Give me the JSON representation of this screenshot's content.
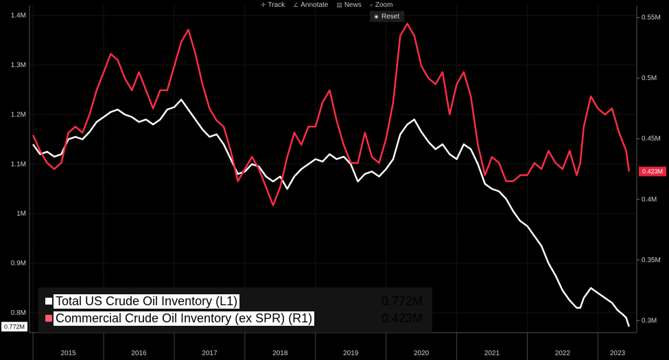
{
  "toolbar": {
    "items": [
      {
        "label": "Track",
        "icon": "crosshair-icon"
      },
      {
        "label": "Annotate",
        "icon": "pencil-icon"
      },
      {
        "label": "News",
        "icon": "news-icon"
      },
      {
        "label": "Zoom",
        "icon": "magnifier-icon"
      }
    ],
    "reset_label": "Reset"
  },
  "legend": {
    "rows": [
      {
        "label": "Total US Crude Oil Inventory (L1)",
        "value": "0.772M"
      },
      {
        "label": "Commercial Crude Oil Inventory (ex SPR) (R1)",
        "value": "0.423M"
      }
    ]
  },
  "badges": {
    "left": "0.772M",
    "right": "0.423M"
  },
  "colors": {
    "white_series": "#ffffff",
    "red_series": "#ff2d46",
    "grid": "#3a3a3a",
    "axis_text": "#d0d0d0",
    "right_badge": "#e8263f"
  },
  "chart_data": {
    "type": "line",
    "x_ticks": [
      "2015",
      "2016",
      "2017",
      "2018",
      "2019",
      "2020",
      "2021",
      "2022",
      "2023"
    ],
    "y_left": {
      "ticks": [
        "1.4M",
        "1.3M",
        "1.2M",
        "1.1M",
        "1M",
        "0.9M",
        "0.8M"
      ],
      "min": 0.76,
      "max": 1.42
    },
    "y_right": {
      "ticks": [
        "0.55M",
        "0.5M",
        "0.45M",
        "0.4M",
        "0.35M",
        "0.3M"
      ],
      "min": 0.29,
      "max": 0.56
    },
    "x_range": [
      2014.95,
      2023.55
    ],
    "grid": true,
    "series": [
      {
        "name": "Total US Crude Oil Inventory (L1)",
        "axis": "left",
        "color": "#ffffff",
        "points": [
          [
            2015.0,
            1.14
          ],
          [
            2015.1,
            1.12
          ],
          [
            2015.2,
            1.125
          ],
          [
            2015.3,
            1.115
          ],
          [
            2015.4,
            1.12
          ],
          [
            2015.5,
            1.15
          ],
          [
            2015.6,
            1.155
          ],
          [
            2015.7,
            1.15
          ],
          [
            2015.8,
            1.165
          ],
          [
            2015.9,
            1.185
          ],
          [
            2016.0,
            1.195
          ],
          [
            2016.1,
            1.205
          ],
          [
            2016.2,
            1.21
          ],
          [
            2016.3,
            1.2
          ],
          [
            2016.4,
            1.195
          ],
          [
            2016.5,
            1.185
          ],
          [
            2016.6,
            1.19
          ],
          [
            2016.7,
            1.18
          ],
          [
            2016.8,
            1.19
          ],
          [
            2016.9,
            1.21
          ],
          [
            2017.0,
            1.215
          ],
          [
            2017.1,
            1.23
          ],
          [
            2017.2,
            1.21
          ],
          [
            2017.3,
            1.19
          ],
          [
            2017.4,
            1.17
          ],
          [
            2017.5,
            1.155
          ],
          [
            2017.6,
            1.16
          ],
          [
            2017.7,
            1.14
          ],
          [
            2017.8,
            1.11
          ],
          [
            2017.9,
            1.08
          ],
          [
            2018.0,
            1.085
          ],
          [
            2018.1,
            1.1
          ],
          [
            2018.2,
            1.095
          ],
          [
            2018.3,
            1.075
          ],
          [
            2018.4,
            1.065
          ],
          [
            2018.5,
            1.075
          ],
          [
            2018.6,
            1.05
          ],
          [
            2018.7,
            1.075
          ],
          [
            2018.8,
            1.09
          ],
          [
            2018.9,
            1.1
          ],
          [
            2019.0,
            1.11
          ],
          [
            2019.1,
            1.105
          ],
          [
            2019.2,
            1.12
          ],
          [
            2019.3,
            1.11
          ],
          [
            2019.4,
            1.115
          ],
          [
            2019.5,
            1.1
          ],
          [
            2019.6,
            1.065
          ],
          [
            2019.7,
            1.08
          ],
          [
            2019.8,
            1.085
          ],
          [
            2019.9,
            1.075
          ],
          [
            2020.0,
            1.09
          ],
          [
            2020.1,
            1.11
          ],
          [
            2020.2,
            1.16
          ],
          [
            2020.3,
            1.18
          ],
          [
            2020.4,
            1.19
          ],
          [
            2020.5,
            1.165
          ],
          [
            2020.6,
            1.145
          ],
          [
            2020.7,
            1.13
          ],
          [
            2020.8,
            1.14
          ],
          [
            2020.9,
            1.12
          ],
          [
            2021.0,
            1.11
          ],
          [
            2021.1,
            1.14
          ],
          [
            2021.2,
            1.13
          ],
          [
            2021.3,
            1.1
          ],
          [
            2021.4,
            1.06
          ],
          [
            2021.5,
            1.05
          ],
          [
            2021.6,
            1.045
          ],
          [
            2021.7,
            1.03
          ],
          [
            2021.8,
            1.005
          ],
          [
            2021.9,
            0.985
          ],
          [
            2022.0,
            0.975
          ],
          [
            2022.1,
            0.955
          ],
          [
            2022.2,
            0.935
          ],
          [
            2022.3,
            0.9
          ],
          [
            2022.4,
            0.875
          ],
          [
            2022.5,
            0.845
          ],
          [
            2022.6,
            0.825
          ],
          [
            2022.7,
            0.81
          ],
          [
            2022.75,
            0.81
          ],
          [
            2022.8,
            0.83
          ],
          [
            2022.9,
            0.85
          ],
          [
            2023.0,
            0.84
          ],
          [
            2023.1,
            0.83
          ],
          [
            2023.2,
            0.82
          ],
          [
            2023.28,
            0.805
          ],
          [
            2023.35,
            0.797
          ],
          [
            2023.4,
            0.79
          ],
          [
            2023.44,
            0.772
          ]
        ]
      },
      {
        "name": "Commercial Crude Oil Inventory (ex SPR) (R1)",
        "axis": "right",
        "color": "#ff2d46",
        "points": [
          [
            2015.0,
            0.453
          ],
          [
            2015.1,
            0.44
          ],
          [
            2015.2,
            0.43
          ],
          [
            2015.3,
            0.425
          ],
          [
            2015.4,
            0.43
          ],
          [
            2015.5,
            0.455
          ],
          [
            2015.6,
            0.46
          ],
          [
            2015.7,
            0.455
          ],
          [
            2015.8,
            0.47
          ],
          [
            2015.9,
            0.49
          ],
          [
            2016.0,
            0.505
          ],
          [
            2016.1,
            0.52
          ],
          [
            2016.2,
            0.515
          ],
          [
            2016.3,
            0.5
          ],
          [
            2016.4,
            0.49
          ],
          [
            2016.5,
            0.505
          ],
          [
            2016.6,
            0.49
          ],
          [
            2016.7,
            0.475
          ],
          [
            2016.8,
            0.49
          ],
          [
            2016.9,
            0.49
          ],
          [
            2017.0,
            0.51
          ],
          [
            2017.1,
            0.53
          ],
          [
            2017.2,
            0.54
          ],
          [
            2017.3,
            0.52
          ],
          [
            2017.4,
            0.495
          ],
          [
            2017.5,
            0.475
          ],
          [
            2017.6,
            0.465
          ],
          [
            2017.7,
            0.46
          ],
          [
            2017.8,
            0.44
          ],
          [
            2017.9,
            0.415
          ],
          [
            2018.0,
            0.425
          ],
          [
            2018.1,
            0.435
          ],
          [
            2018.2,
            0.425
          ],
          [
            2018.3,
            0.41
          ],
          [
            2018.4,
            0.395
          ],
          [
            2018.5,
            0.41
          ],
          [
            2018.6,
            0.435
          ],
          [
            2018.7,
            0.455
          ],
          [
            2018.8,
            0.445
          ],
          [
            2018.9,
            0.46
          ],
          [
            2019.0,
            0.46
          ],
          [
            2019.1,
            0.48
          ],
          [
            2019.2,
            0.49
          ],
          [
            2019.3,
            0.465
          ],
          [
            2019.4,
            0.445
          ],
          [
            2019.5,
            0.43
          ],
          [
            2019.6,
            0.43
          ],
          [
            2019.7,
            0.455
          ],
          [
            2019.8,
            0.435
          ],
          [
            2019.9,
            0.43
          ],
          [
            2020.0,
            0.45
          ],
          [
            2020.1,
            0.48
          ],
          [
            2020.2,
            0.535
          ],
          [
            2020.3,
            0.545
          ],
          [
            2020.4,
            0.535
          ],
          [
            2020.5,
            0.51
          ],
          [
            2020.6,
            0.5
          ],
          [
            2020.7,
            0.495
          ],
          [
            2020.8,
            0.505
          ],
          [
            2020.9,
            0.47
          ],
          [
            2021.0,
            0.495
          ],
          [
            2021.1,
            0.505
          ],
          [
            2021.2,
            0.485
          ],
          [
            2021.3,
            0.445
          ],
          [
            2021.4,
            0.42
          ],
          [
            2021.5,
            0.435
          ],
          [
            2021.6,
            0.43
          ],
          [
            2021.7,
            0.415
          ],
          [
            2021.8,
            0.415
          ],
          [
            2021.9,
            0.42
          ],
          [
            2022.0,
            0.42
          ],
          [
            2022.1,
            0.43
          ],
          [
            2022.2,
            0.425
          ],
          [
            2022.3,
            0.44
          ],
          [
            2022.4,
            0.43
          ],
          [
            2022.5,
            0.425
          ],
          [
            2022.6,
            0.44
          ],
          [
            2022.7,
            0.42
          ],
          [
            2022.75,
            0.43
          ],
          [
            2022.8,
            0.46
          ],
          [
            2022.9,
            0.485
          ],
          [
            2023.0,
            0.475
          ],
          [
            2023.1,
            0.47
          ],
          [
            2023.2,
            0.475
          ],
          [
            2023.3,
            0.455
          ],
          [
            2023.4,
            0.44
          ],
          [
            2023.44,
            0.423
          ]
        ]
      }
    ]
  }
}
